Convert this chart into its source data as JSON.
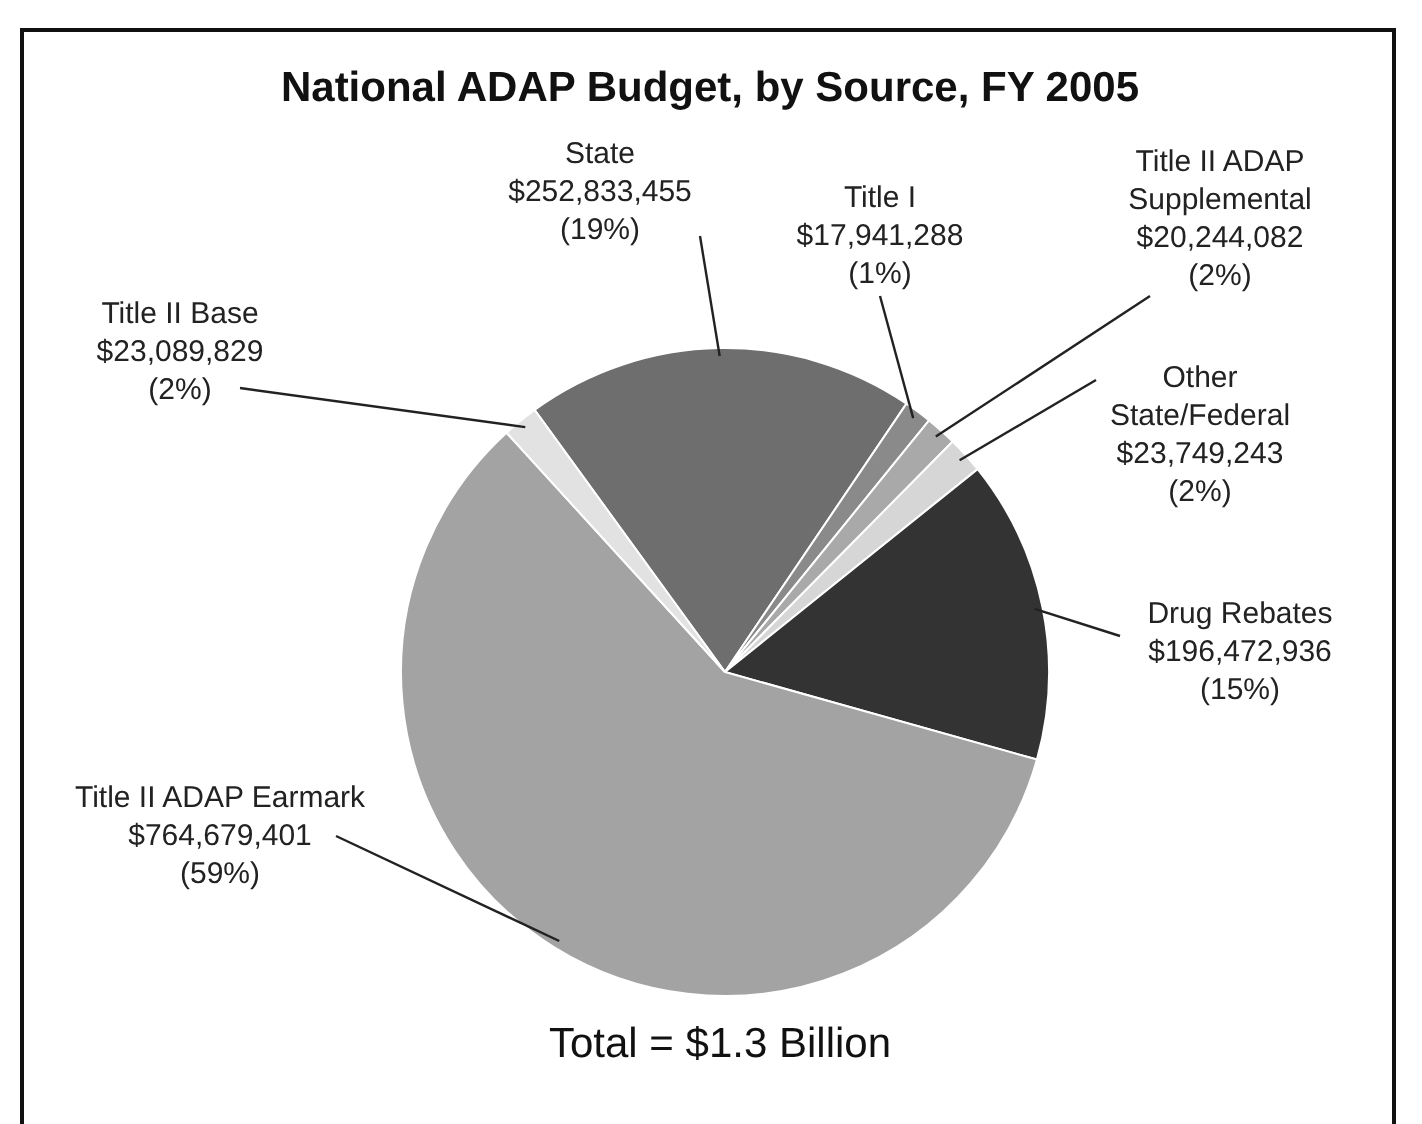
{
  "chart_data": {
    "type": "pie",
    "title": "National ADAP Budget, by Source, FY 2005",
    "categories": [
      "State",
      "Title I",
      "Title II ADAP Supplemental",
      "Other State/Federal",
      "Drug Rebates",
      "Title II ADAP Earmark",
      "Title II Base"
    ],
    "values": [
      252833455,
      17941288,
      20244082,
      23749243,
      196472936,
      764679401,
      23089829
    ],
    "value_labels": [
      "$252,833,455 (19%)",
      "$17,941,288 (1%)",
      "$20,244,082 (2%)",
      "$23,749,243 (2%)",
      "$196,472,936 (15%)",
      "$764,679,401 (59%)",
      "$23,089,829 (2%)"
    ],
    "colors": [
      "#6e6e6e",
      "#8a8a8a",
      "#a9a9a9",
      "#d6d6d6",
      "#333333",
      "#a3a3a3",
      "#e2e2e2"
    ],
    "annotations": [
      "Total = $1.3 Billion"
    ],
    "legend": false
  }
}
